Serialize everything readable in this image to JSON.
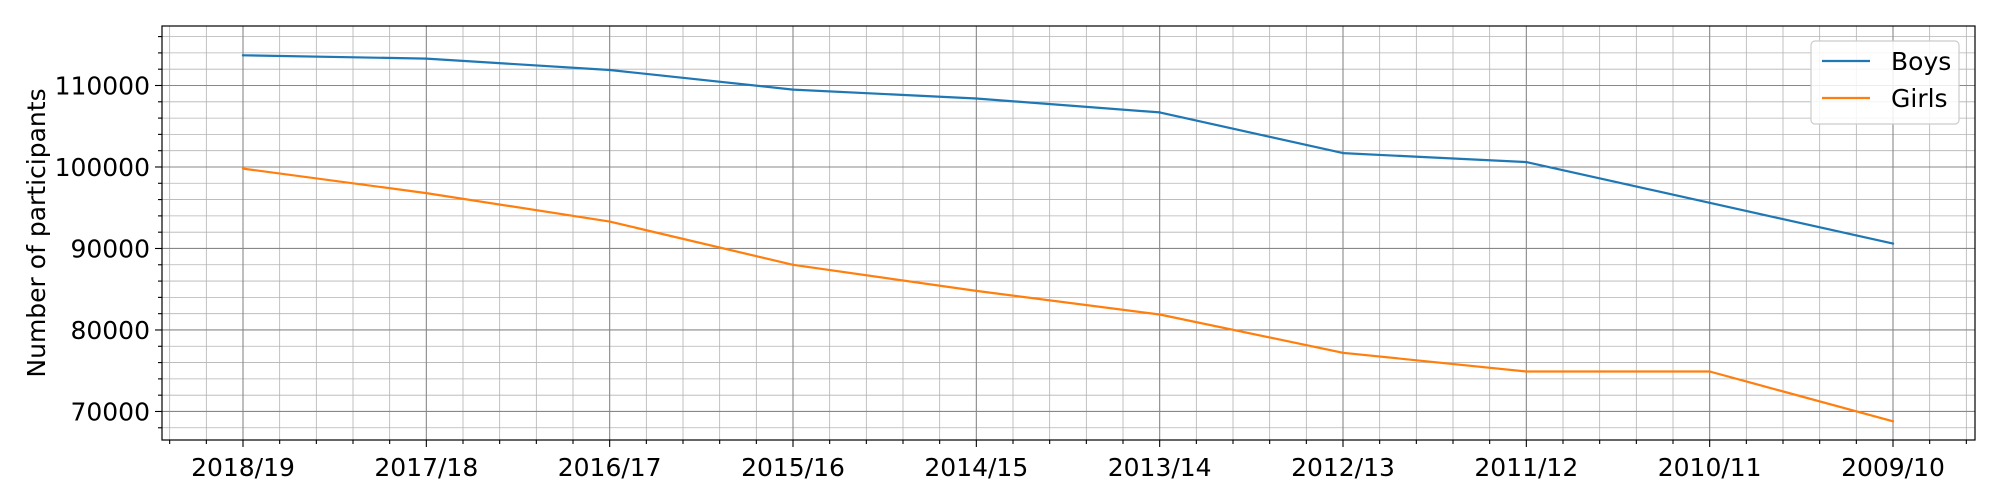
{
  "chart_data": {
    "type": "line",
    "categories": [
      "2018/19",
      "2017/18",
      "2016/17",
      "2015/16",
      "2014/15",
      "2013/14",
      "2012/13",
      "2011/12",
      "2010/11",
      "2009/10"
    ],
    "series": [
      {
        "name": "Boys",
        "color": "#1f77b4",
        "values": [
          113700,
          113300,
          111900,
          109500,
          108400,
          106700,
          101700,
          100600,
          95600,
          90600
        ]
      },
      {
        "name": "Girls",
        "color": "#ff7f0e",
        "values": [
          99800,
          96800,
          93300,
          88000,
          84800,
          81900,
          77200,
          74900,
          74900,
          68800
        ]
      }
    ],
    "xlabel": "",
    "ylabel": "Number of participants",
    "ylim": [
      66500,
      117300
    ],
    "yticks": [
      70000,
      80000,
      90000,
      100000,
      110000
    ],
    "grid": true,
    "minor_grid": true,
    "legend_position": "top-right"
  }
}
